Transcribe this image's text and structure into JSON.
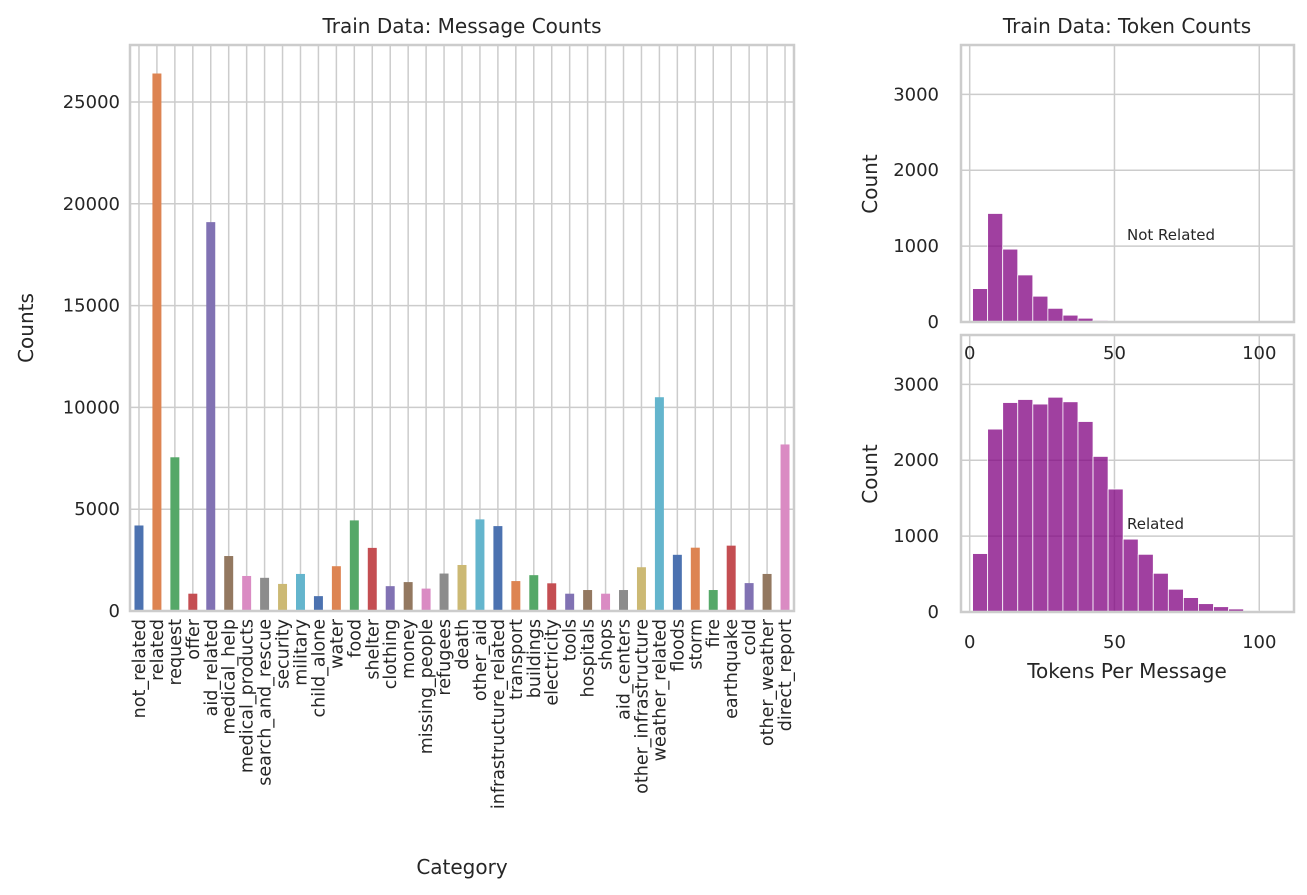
{
  "chart_data": [
    {
      "type": "bar",
      "title": "Train Data: Message Counts",
      "xlabel": "Category",
      "ylabel": "Counts",
      "ylim": [
        0,
        27800
      ],
      "yticks": [
        0,
        5000,
        10000,
        15000,
        20000,
        25000
      ],
      "grid": true,
      "palette": [
        "#4c72b0",
        "#dd8452",
        "#55a868",
        "#c44e52",
        "#8172b3",
        "#937860",
        "#da8bc3",
        "#8c8c8c",
        "#ccb974",
        "#64b5cd"
      ],
      "categories": [
        "not_related",
        "related",
        "request",
        "offer",
        "aid_related",
        "medical_help",
        "medical_products",
        "search_and_rescue",
        "security",
        "military",
        "child_alone",
        "water",
        "food",
        "shelter",
        "clothing",
        "money",
        "missing_people",
        "refugees",
        "death",
        "other_aid",
        "infrastructure_related",
        "transport",
        "buildings",
        "electricity",
        "tools",
        "hospitals",
        "shops",
        "aid_centers",
        "other_infrastructure",
        "weather_related",
        "floods",
        "storm",
        "fire",
        "earthquake",
        "cold",
        "other_weather",
        "direct_report"
      ],
      "values": [
        4200,
        26400,
        7550,
        850,
        19100,
        2700,
        1720,
        1630,
        1330,
        1820,
        730,
        2200,
        4450,
        3100,
        1220,
        1420,
        1100,
        1840,
        2260,
        4500,
        4170,
        1470,
        1760,
        1360,
        850,
        1030,
        850,
        1030,
        2150,
        10500,
        2760,
        3110,
        1030,
        3210,
        1370,
        1820,
        8180
      ]
    },
    {
      "type": "bar",
      "title": "Train Data: Token Counts",
      "annotation": "Not Related",
      "xlabel": "",
      "ylabel": "Count",
      "xlim": [
        -3,
        112
      ],
      "ylim": [
        0,
        3650
      ],
      "xticks": [
        0,
        50,
        100
      ],
      "yticks": [
        0,
        1000,
        2000,
        3000
      ],
      "bar_color": "#800080",
      "bin_width": 5.2,
      "bins": [
        [
          1,
          440
        ],
        [
          6.2,
          1430
        ],
        [
          11.4,
          960
        ],
        [
          16.6,
          620
        ],
        [
          21.8,
          340
        ],
        [
          27,
          180
        ],
        [
          32.2,
          90
        ],
        [
          37.4,
          50
        ],
        [
          42.6,
          20
        ],
        [
          47.8,
          8
        ],
        [
          53,
          5
        ],
        [
          58.2,
          3
        ],
        [
          63.4,
          2
        ],
        [
          68.6,
          1
        ]
      ]
    },
    {
      "type": "bar",
      "annotation": "Related",
      "xlabel": "Tokens Per Message",
      "ylabel": "Count",
      "xlim": [
        -3,
        112
      ],
      "ylim": [
        0,
        3650
      ],
      "xticks": [
        0,
        50,
        100
      ],
      "yticks": [
        0,
        1000,
        2000,
        3000
      ],
      "bar_color": "#800080",
      "bin_width": 5.2,
      "bins": [
        [
          1,
          770
        ],
        [
          6.2,
          2410
        ],
        [
          11.4,
          2760
        ],
        [
          16.6,
          2800
        ],
        [
          21.8,
          2740
        ],
        [
          27,
          2830
        ],
        [
          32.2,
          2770
        ],
        [
          37.4,
          2510
        ],
        [
          42.6,
          2050
        ],
        [
          47.8,
          1620
        ],
        [
          53,
          960
        ],
        [
          58.2,
          760
        ],
        [
          63.4,
          510
        ],
        [
          68.6,
          300
        ],
        [
          73.8,
          190
        ],
        [
          79,
          110
        ],
        [
          84.2,
          70
        ],
        [
          89.4,
          40
        ],
        [
          94.6,
          15
        ],
        [
          99.8,
          8
        ],
        [
          105,
          5
        ]
      ]
    }
  ]
}
